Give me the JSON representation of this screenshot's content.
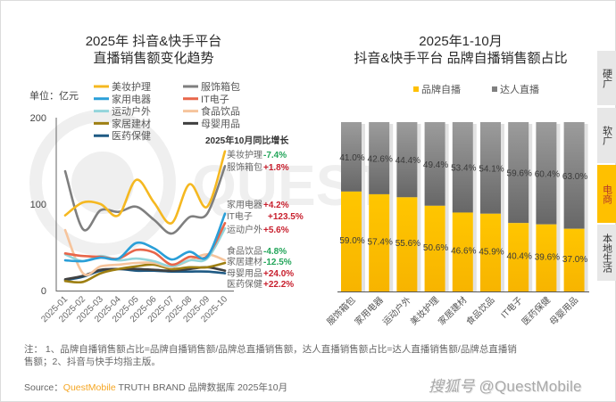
{
  "left_panel": {
    "title_line1": "2025年 抖音&快手平台",
    "title_line2": "直播销售额变化趋势",
    "unit_label": "单位：亿元",
    "growth_header": "2025年10月同比增长"
  },
  "right_panel": {
    "title_line1": "2025年1-10月",
    "title_line2": "抖音&快手平台 品牌自播销售额占比"
  },
  "side_tabs": [
    {
      "label": "硬广",
      "active": false
    },
    {
      "label": "软广",
      "active": false
    },
    {
      "label": "电商",
      "active": true
    },
    {
      "label": "本地生活",
      "active": false
    }
  ],
  "notes": {
    "lines": [
      "注： 1、品牌自播销售额占比=品牌自播销售额/品牌总直播销售额，达人直播销售额占比=达人直播销售额/品牌总直播销",
      "售额；2、抖音与快手均指主版。"
    ]
  },
  "source": {
    "prefix": "Source：",
    "brand": "QuestMobile",
    "suffix": " TRUTH BRAND 品牌数据库 2025年10月"
  },
  "watermark": {
    "platform": "搜狐号",
    "handle": "@QuestMobile"
  },
  "background_logo_text": "QUEST",
  "colors": {
    "positive_growth": "#c8202e",
    "negative_growth": "#23a55a",
    "brand_live": "#ffc000",
    "kol_live": "#808080",
    "active_tab": "#ffc000",
    "source_brand": "#f5a623"
  },
  "chart_data": [
    {
      "type": "line",
      "title": "2025年 抖音&快手平台 直播销售额变化趋势",
      "xlabel": "",
      "ylabel": "亿元",
      "ylim": [
        0,
        200
      ],
      "yticks": [
        0,
        100,
        200
      ],
      "grid": false,
      "legend": "top",
      "x": [
        "2025-01",
        "2025-02",
        "2025-03",
        "2025-04",
        "2025-05",
        "2025-06",
        "2025-07",
        "2025-08",
        "2025-09",
        "2025-10"
      ],
      "series": [
        {
          "name": "美妆护理",
          "color": "#f5b820",
          "yoy_growth": "-7.4%",
          "values": [
            87,
            102,
            100,
            87,
            128,
            102,
            78,
            123,
            97,
            161
          ]
        },
        {
          "name": "服饰箱包",
          "color": "#7f7f7f",
          "yoy_growth": "+1.8%",
          "values": [
            138,
            71,
            93,
            91,
            97,
            82,
            66,
            85,
            89,
            144
          ]
        },
        {
          "name": "家用电器",
          "color": "#2a9fd8",
          "yoy_growth": "+4.2%",
          "values": [
            35,
            34,
            38,
            37,
            55,
            49,
            36,
            45,
            39,
            89
          ]
        },
        {
          "name": "IT电子",
          "color": "#e8664a",
          "yoy_growth": "+123.5%",
          "values": [
            43,
            40,
            39,
            37,
            47,
            44,
            30,
            39,
            40,
            78
          ]
        },
        {
          "name": "运动户外",
          "color": "#93d5db",
          "yoy_growth": "+5.6%",
          "values": [
            42,
            34,
            40,
            35,
            37,
            34,
            28,
            35,
            37,
            72
          ]
        },
        {
          "name": "食品饮品",
          "color": "#f6c49c",
          "yoy_growth": "-4.8%",
          "values": [
            70,
            20,
            28,
            30,
            32,
            32,
            27,
            35,
            42,
            35
          ]
        },
        {
          "name": "家居建材",
          "color": "#9e7f12",
          "yoy_growth": "-12.5%",
          "values": [
            11,
            10,
            20,
            25,
            28,
            30,
            25,
            27,
            27,
            32
          ]
        },
        {
          "name": "母婴用品",
          "color": "#404040",
          "yoy_growth": "+24.0%",
          "values": [
            13,
            17,
            24,
            25,
            25,
            24,
            23,
            25,
            27,
            23
          ]
        },
        {
          "name": "医药保健",
          "color": "#1f5a84",
          "yoy_growth": "+22.2%",
          "values": [
            12,
            16,
            23,
            25,
            23,
            23,
            22,
            22,
            22,
            20
          ]
        }
      ],
      "annotation_title": "2025年10月同比增长"
    },
    {
      "type": "bar",
      "stacked": "percent",
      "title": "2025年1-10月 抖音&快手平台 品牌自播销售额占比",
      "xlabel": "",
      "ylabel": "",
      "ylim": [
        0,
        100
      ],
      "legend": "top",
      "categories": [
        "服饰箱包",
        "家用电器",
        "运动户外",
        "美妆护理",
        "家居建材",
        "食品饮品",
        "IT电子",
        "医药保健",
        "母婴用品"
      ],
      "series": [
        {
          "name": "品牌自播",
          "color": "#ffc000",
          "values": [
            59.0,
            57.4,
            55.6,
            50.6,
            46.6,
            45.9,
            40.4,
            39.6,
            37.0
          ]
        },
        {
          "name": "达人直播",
          "color": "#808080",
          "values": [
            41.0,
            42.6,
            44.4,
            49.4,
            53.4,
            54.1,
            59.6,
            60.4,
            63.0
          ]
        }
      ],
      "value_suffix": "%"
    }
  ]
}
